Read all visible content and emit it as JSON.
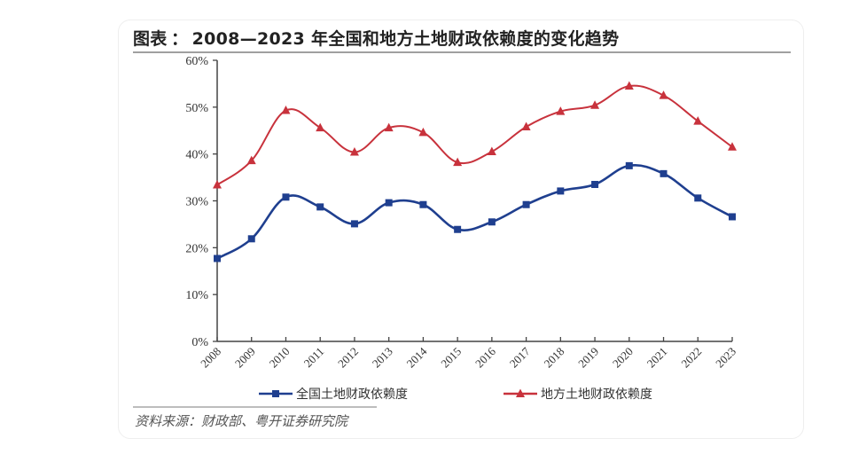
{
  "header": {
    "title_prefix": "图表",
    "title_sep": "：",
    "title_main": "2008—2023 年全国和地方土地财政依赖度的变化趋势"
  },
  "source": "资料来源：财政部、粤开证券研究院",
  "colors": {
    "national": "#1f3f8f",
    "local": "#c8323c",
    "axis": "#444444"
  },
  "chart_data": {
    "type": "line",
    "title": "2008—2023 年全国和地方土地财政依赖度的变化趋势",
    "xlabel": "",
    "ylabel": "",
    "categories": [
      "2008",
      "2009",
      "2010",
      "2011",
      "2012",
      "2013",
      "2014",
      "2015",
      "2016",
      "2017",
      "2018",
      "2019",
      "2020",
      "2021",
      "2022",
      "2023"
    ],
    "y_ticks": [
      "0%",
      "10%",
      "20%",
      "30%",
      "40%",
      "50%",
      "60%"
    ],
    "ylim": [
      0,
      60
    ],
    "grid": false,
    "legend_position": "bottom",
    "series": [
      {
        "name": "全国土地财政依赖度",
        "marker": "square",
        "color": "#1f3f8f",
        "values": [
          17.7,
          21.9,
          30.8,
          28.7,
          25.1,
          29.6,
          29.2,
          23.9,
          25.5,
          29.2,
          32.1,
          33.5,
          37.5,
          35.8,
          30.6,
          26.6
        ]
      },
      {
        "name": "地方土地财政依赖度",
        "marker": "triangle",
        "color": "#c8323c",
        "values": [
          33.4,
          38.6,
          49.3,
          45.6,
          40.4,
          45.6,
          44.6,
          38.2,
          40.5,
          45.8,
          49.1,
          50.4,
          54.5,
          52.5,
          47.0,
          41.5
        ]
      }
    ]
  }
}
